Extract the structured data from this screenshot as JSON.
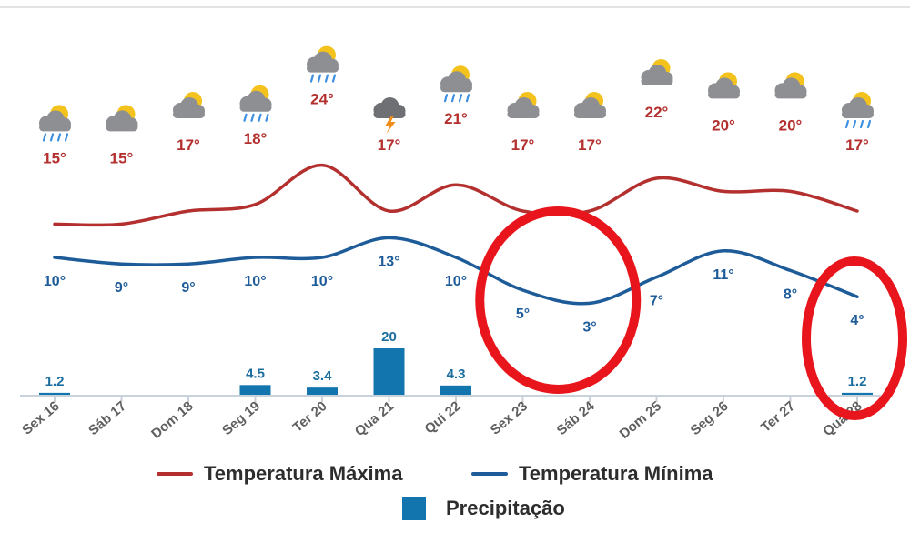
{
  "colors": {
    "max": "#b3302f",
    "min": "#1e5b99",
    "precip": "#1275ae",
    "highlight": "#e8161c",
    "axis": "#c9d1da",
    "cloud": "#8d8f93",
    "sun": "#f4c21c",
    "rain": "#3d8fe0"
  },
  "chart_data": {
    "type": "line",
    "categories": [
      "Sex 16",
      "Sáb 17",
      "Dom 18",
      "Seg 19",
      "Ter 20",
      "Qua 21",
      "Qui 22",
      "Sex 23",
      "Sáb 24",
      "Dom 25",
      "Seg 26",
      "Ter 27",
      "Qua 28"
    ],
    "series": [
      {
        "name": "Temperatura Máxima",
        "values": [
          15,
          15,
          17,
          18,
          24,
          17,
          21,
          17,
          17,
          22,
          20,
          20,
          17
        ],
        "labels": [
          "15°",
          "15°",
          "17°",
          "18°",
          "24°",
          "17°",
          "21°",
          "17°",
          "17°",
          "22°",
          "20°",
          "20°",
          "17°"
        ]
      },
      {
        "name": "Temperatura Mínima",
        "values": [
          10,
          9,
          9,
          10,
          10,
          13,
          10,
          5,
          3,
          7,
          11,
          8,
          4
        ],
        "labels": [
          "10°",
          "9°",
          "9°",
          "10°",
          "10°",
          "13°",
          "10°",
          "5°",
          "3°",
          "7°",
          "11°",
          "8°",
          "4°"
        ]
      },
      {
        "name": "Precipitação",
        "type": "bar",
        "values": [
          1.2,
          0,
          0,
          4.5,
          3.4,
          20,
          4.3,
          0,
          0,
          0,
          0,
          0,
          1.2
        ],
        "labels": [
          "1.2",
          "",
          "",
          "4.5",
          "3.4",
          "20",
          "4.3",
          "",
          "",
          "",
          "",
          "",
          "1.2"
        ]
      }
    ],
    "weather_icons": [
      "rain-sun-icon",
      "cloud-sun-icon",
      "cloud-sun-icon",
      "rain-sun-icon",
      "rain-sun-icon",
      "thunderstorm-icon",
      "rain-sun-icon",
      "cloud-sun-icon",
      "cloud-sun-icon",
      "cloud-sun-icon",
      "cloud-sun-icon",
      "cloud-sun-icon",
      "rain-sun-icon"
    ],
    "annotations": [
      "red circle around Sex 23 – Sáb 24 minima",
      "red circle around Qua 28"
    ],
    "legend": {
      "max": "Temperatura Máxima",
      "min": "Temperatura Mínima",
      "precip": "Precipitação",
      "placement": "bottom"
    }
  }
}
